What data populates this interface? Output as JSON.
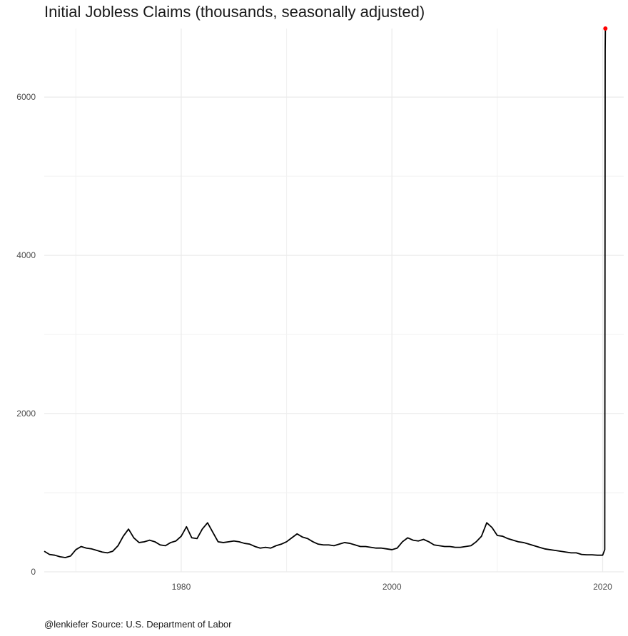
{
  "chart_data": {
    "type": "line",
    "title": "Initial Jobless Claims (thousands, seasonally adjusted)",
    "caption": "@lenkiefer Source: U.S. Department of Labor",
    "xlabel": "",
    "ylabel": "",
    "xlim": [
      1967,
      2022
    ],
    "ylim": [
      0,
      6867
    ],
    "x_ticks": [
      1980,
      2000,
      2020
    ],
    "x_tick_labels": [
      "1980",
      "2000",
      "2020"
    ],
    "y_ticks": [
      0,
      2000,
      4000,
      6000
    ],
    "y_tick_labels": [
      "0",
      "2000",
      "4000",
      "6000"
    ],
    "grid": true,
    "legend": "none",
    "line_color": "#000000",
    "highlight_color": "#ff0000",
    "series": [
      {
        "x": [
          1967.0,
          1967.5,
          1968.0,
          1968.5,
          1969.0,
          1969.5,
          1970.0,
          1970.5,
          1971.0,
          1971.5,
          1972.0,
          1972.5,
          1973.0,
          1973.5,
          1974.0,
          1974.5,
          1975.0,
          1975.5,
          1976.0,
          1976.5,
          1977.0,
          1977.5,
          1978.0,
          1978.5,
          1979.0,
          1979.5,
          1980.0,
          1980.5,
          1981.0,
          1981.5,
          1982.0,
          1982.5,
          1983.0,
          1983.5,
          1984.0,
          1984.5,
          1985.0,
          1985.5,
          1986.0,
          1986.5,
          1987.0,
          1987.5,
          1988.0,
          1988.5,
          1989.0,
          1989.5,
          1990.0,
          1990.5,
          1991.0,
          1991.5,
          1992.0,
          1992.5,
          1993.0,
          1993.5,
          1994.0,
          1994.5,
          1995.0,
          1995.5,
          1996.0,
          1996.5,
          1997.0,
          1997.5,
          1998.0,
          1998.5,
          1999.0,
          1999.5,
          2000.0,
          2000.5,
          2001.0,
          2001.5,
          2002.0,
          2002.5,
          2003.0,
          2003.5,
          2004.0,
          2004.5,
          2005.0,
          2005.5,
          2006.0,
          2006.5,
          2007.0,
          2007.5,
          2008.0,
          2008.5,
          2009.0,
          2009.5,
          2010.0,
          2010.5,
          2011.0,
          2011.5,
          2012.0,
          2012.5,
          2013.0,
          2013.5,
          2014.0,
          2014.5,
          2015.0,
          2015.5,
          2016.0,
          2016.5,
          2017.0,
          2017.5,
          2018.0,
          2018.5,
          2019.0,
          2019.5,
          2020.0,
          2020.2,
          2020.22,
          2020.24,
          2020.26
        ],
        "y": [
          260,
          220,
          210,
          190,
          180,
          200,
          280,
          320,
          300,
          290,
          270,
          250,
          240,
          260,
          330,
          450,
          540,
          430,
          370,
          380,
          400,
          380,
          340,
          330,
          370,
          390,
          450,
          570,
          430,
          420,
          540,
          620,
          500,
          380,
          370,
          380,
          390,
          380,
          360,
          350,
          320,
          300,
          310,
          300,
          330,
          350,
          380,
          430,
          480,
          440,
          420,
          380,
          350,
          340,
          340,
          330,
          350,
          370,
          360,
          340,
          320,
          320,
          310,
          300,
          300,
          290,
          280,
          300,
          380,
          430,
          400,
          390,
          410,
          380,
          340,
          330,
          320,
          320,
          310,
          310,
          320,
          330,
          380,
          450,
          620,
          560,
          460,
          450,
          420,
          400,
          380,
          370,
          350,
          330,
          310,
          290,
          280,
          270,
          260,
          250,
          240,
          240,
          220,
          215,
          215,
          210,
          210,
          280,
          3300,
          6600,
          6867
        ]
      }
    ],
    "highlight_point": {
      "x": 2020.26,
      "y": 6867
    }
  }
}
